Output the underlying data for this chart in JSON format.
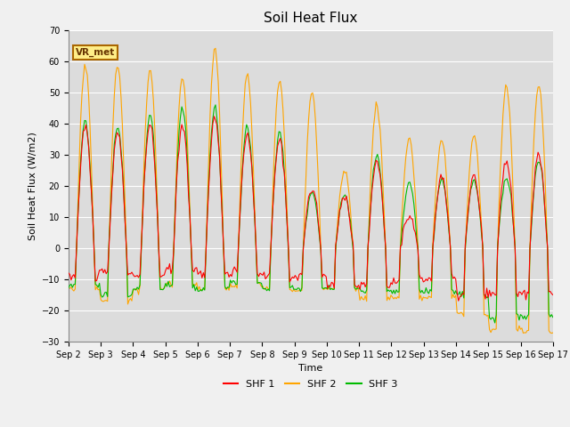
{
  "title": "Soil Heat Flux",
  "ylabel": "Soil Heat Flux (W/m2)",
  "xlabel": "Time",
  "legend_labels": [
    "SHF 1",
    "SHF 2",
    "SHF 3"
  ],
  "legend_colors": [
    "#ff0000",
    "#ffa500",
    "#00bb00"
  ],
  "annotation_text": "VR_met",
  "annotation_box_edgecolor": "#aa6600",
  "annotation_bg": "#ffee88",
  "annotation_text_color": "#663300",
  "ylim": [
    -30,
    70
  ],
  "plot_bg_color": "#dcdcdc",
  "fig_bg_color": "#f0f0f0",
  "grid_color": "#ffffff",
  "n_days": 15,
  "title_fontsize": 11,
  "label_fontsize": 8,
  "tick_fontsize": 7,
  "legend_fontsize": 8,
  "day_amps_1": [
    39,
    37,
    40,
    40,
    42,
    37,
    35,
    19,
    17,
    28,
    10,
    23,
    23,
    28,
    30
  ],
  "day_amps_2": [
    59,
    59,
    57,
    55,
    64,
    56,
    54,
    50,
    25,
    46,
    35,
    35,
    36,
    52,
    53
  ],
  "day_amps_3": [
    41,
    39,
    43,
    45,
    45,
    39,
    37,
    18,
    17,
    30,
    21,
    22,
    22,
    23,
    28
  ],
  "night_vals_1": [
    -9,
    -8,
    -9,
    -7,
    -8,
    -8,
    -9,
    -9,
    -12,
    -12,
    -10,
    -10,
    -15,
    -15,
    -15
  ],
  "night_vals_2": [
    -13,
    -17,
    -13,
    -12,
    -13,
    -12,
    -13,
    -13,
    -13,
    -16,
    -16,
    -16,
    -21,
    -26,
    -27
  ],
  "night_vals_3": [
    -12,
    -15,
    -13,
    -12,
    -13,
    -11,
    -13,
    -13,
    -13,
    -14,
    -14,
    -14,
    -15,
    -22,
    -22
  ]
}
